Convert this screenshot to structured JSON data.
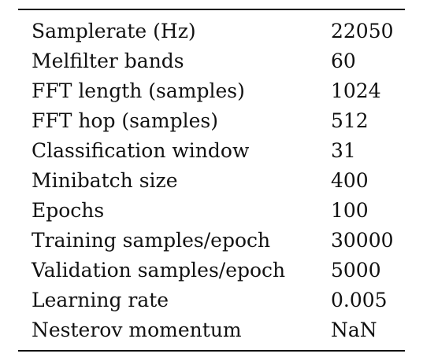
{
  "table": {
    "rows": [
      {
        "parameter": "Samplerate (Hz)",
        "value": "22050"
      },
      {
        "parameter": "Melfilter bands",
        "value": "60"
      },
      {
        "parameter": "FFT length (samples)",
        "value": "1024"
      },
      {
        "parameter": "FFT hop (samples)",
        "value": "512"
      },
      {
        "parameter": "Classification window",
        "value": "31"
      },
      {
        "parameter": "Minibatch size",
        "value": "400"
      },
      {
        "parameter": "Epochs",
        "value": "100"
      },
      {
        "parameter": "Training samples/epoch",
        "value": "30000"
      },
      {
        "parameter": "Validation samples/epoch",
        "value": "5000"
      },
      {
        "parameter": "Learning rate",
        "value": "0.005"
      },
      {
        "parameter": "Nesterov momentum",
        "value": "NaN"
      }
    ]
  }
}
